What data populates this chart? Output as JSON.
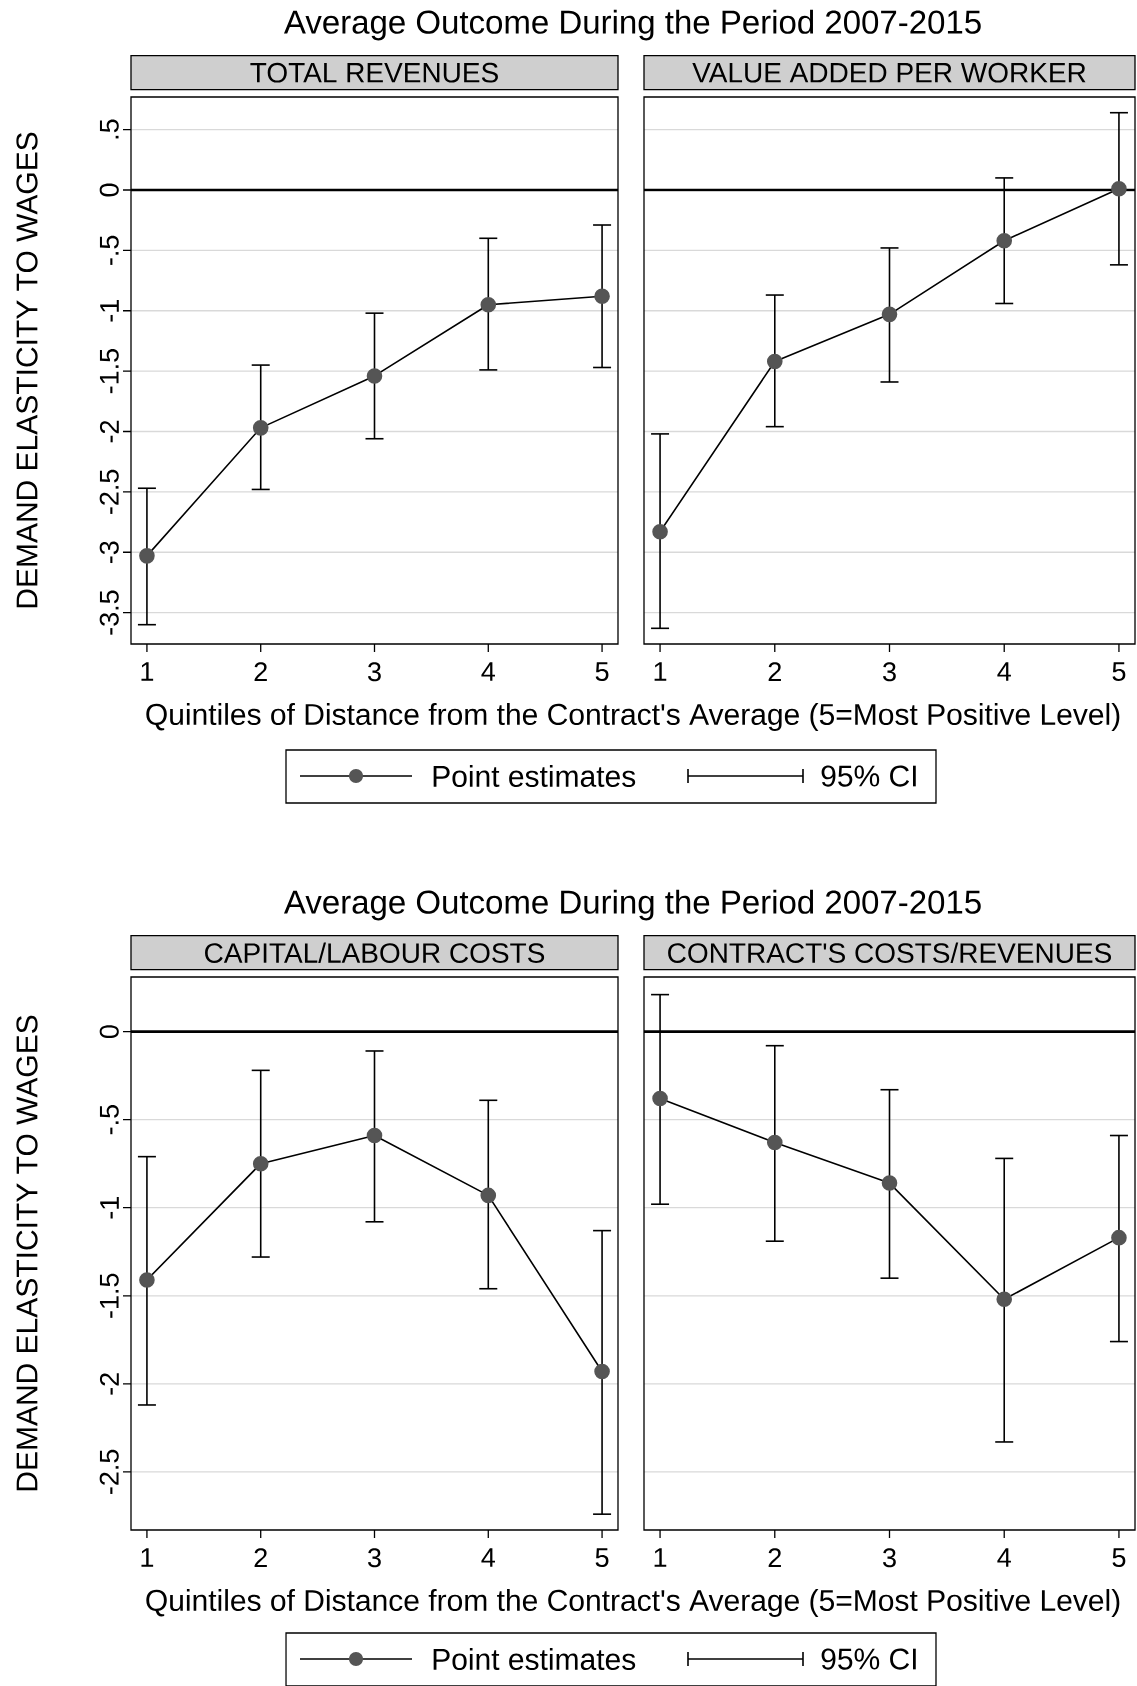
{
  "chart_data": [
    {
      "type": "line",
      "title": "TOTAL REVENUES",
      "xlabel": "Quintiles of Distance from the Contract's Average (5=Most Positive Level)",
      "ylabel": "DEMAND ELASTICITY TO WAGES",
      "annotations": [
        "Average Outcome During the Period 2007-2015",
        "95% CI"
      ],
      "x": [
        1,
        2,
        3,
        4,
        5
      ],
      "xlim": [
        0.86,
        5.14
      ],
      "xticks": [
        1,
        2,
        3,
        4,
        5
      ],
      "ylim": [
        -3.76,
        0.77
      ],
      "yticks": [
        {
          "value": 0.5,
          "label": ".5"
        },
        0,
        {
          "value": -0.5,
          "label": "-.5"
        },
        -1,
        -1.5,
        -2,
        -2.5,
        -3,
        -3.5
      ],
      "grid": "y",
      "legend": "bottom",
      "marker": "circle",
      "line_style": "solid",
      "ref_lines": [
        {
          "axis": "y",
          "value": 0,
          "color": "#000000"
        }
      ],
      "series": [
        {
          "name": "Point estimates",
          "color": "#555555",
          "values": [
            -3.03,
            -1.97,
            -1.54,
            -0.95,
            -0.88
          ],
          "errors": [
            [
              -3.6,
              -2.47
            ],
            [
              -2.48,
              -1.45
            ],
            [
              -2.06,
              -1.02
            ],
            [
              -1.49,
              -0.4
            ],
            [
              -1.47,
              -0.29
            ]
          ]
        }
      ]
    },
    {
      "type": "line",
      "title": "VALUE ADDED PER WORKER",
      "x": [
        1,
        2,
        3,
        4,
        5
      ],
      "xlim": [
        0.86,
        5.14
      ],
      "xticks": [
        1,
        2,
        3,
        4,
        5
      ],
      "ylim": [
        -3.76,
        0.77
      ],
      "yticks": [
        {
          "value": 0.5,
          "label": null
        },
        {
          "value": 0,
          "label": null
        },
        {
          "value": -0.5,
          "label": null
        },
        {
          "value": -1,
          "label": null
        },
        {
          "value": -1.5,
          "label": null
        },
        {
          "value": -2,
          "label": null
        },
        {
          "value": -2.5,
          "label": null
        },
        {
          "value": -3,
          "label": null
        },
        {
          "value": -3.5,
          "label": null
        }
      ],
      "tick_labels": "x",
      "grid": "y",
      "marker": "circle",
      "line_style": "solid",
      "ref_lines": [
        {
          "axis": "y",
          "value": 0,
          "color": "#000000"
        }
      ],
      "series": [
        {
          "color": "#555555",
          "values": [
            -2.83,
            -1.42,
            -1.03,
            -0.42,
            0.01
          ],
          "errors": [
            [
              -3.63,
              -2.02
            ],
            [
              -1.96,
              -0.87
            ],
            [
              -1.59,
              -0.48
            ],
            [
              -0.94,
              0.1
            ],
            [
              -0.62,
              0.64
            ]
          ]
        }
      ]
    },
    {
      "type": "line",
      "title": "CAPITAL/LABOUR COSTS",
      "xlabel": "Quintiles of Distance from the Contract's Average (5=Most Positive Level)",
      "ylabel": "DEMAND ELASTICITY TO WAGES",
      "annotations": [
        "Average Outcome During the Period 2007-2015",
        "95% CI"
      ],
      "x": [
        1,
        2,
        3,
        4,
        5
      ],
      "xlim": [
        0.86,
        5.14
      ],
      "xticks": [
        1,
        2,
        3,
        4,
        5
      ],
      "ylim": [
        -2.83,
        0.31
      ],
      "yticks": [
        0,
        {
          "value": -0.5,
          "label": "-.5"
        },
        -1,
        -1.5,
        -2,
        -2.5
      ],
      "grid": "y",
      "legend": "bottom",
      "marker": "circle",
      "line_style": "solid",
      "ref_lines": [
        {
          "axis": "y",
          "value": 0,
          "color": "#000000"
        }
      ],
      "series": [
        {
          "name": "Point estimates",
          "color": "#555555",
          "values": [
            -1.41,
            -0.75,
            -0.59,
            -0.93,
            -1.93
          ],
          "errors": [
            [
              -2.12,
              -0.71
            ],
            [
              -1.28,
              -0.22
            ],
            [
              -1.08,
              -0.11
            ],
            [
              -1.46,
              -0.39
            ],
            [
              -2.74,
              -1.13
            ]
          ]
        }
      ]
    },
    {
      "type": "line",
      "title": "CONTRACT'S COSTS/REVENUES",
      "x": [
        1,
        2,
        3,
        4,
        5
      ],
      "xlim": [
        0.86,
        5.14
      ],
      "xticks": [
        1,
        2,
        3,
        4,
        5
      ],
      "ylim": [
        -2.83,
        0.31
      ],
      "yticks": [
        {
          "value": 0,
          "label": null
        },
        {
          "value": -0.5,
          "label": null
        },
        {
          "value": -1,
          "label": null
        },
        {
          "value": -1.5,
          "label": null
        },
        {
          "value": -2,
          "label": null
        },
        {
          "value": -2.5,
          "label": null
        }
      ],
      "tick_labels": "x",
      "grid": "y",
      "marker": "circle",
      "line_style": "solid",
      "ref_lines": [
        {
          "axis": "y",
          "value": 0,
          "color": "#000000"
        }
      ],
      "series": [
        {
          "color": "#555555",
          "values": [
            -0.38,
            -0.63,
            -0.86,
            -1.52,
            -1.17
          ],
          "errors": [
            [
              -0.98,
              0.21
            ],
            [
              -1.19,
              -0.08
            ],
            [
              -1.4,
              -0.33
            ],
            [
              -2.33,
              -0.72
            ],
            [
              -1.76,
              -0.59
            ]
          ]
        }
      ]
    }
  ]
}
